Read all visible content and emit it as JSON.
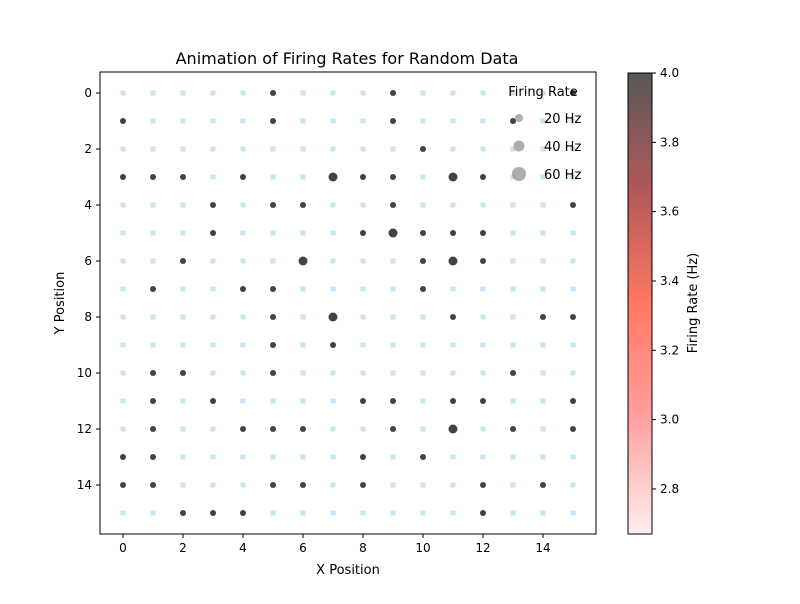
{
  "chart_data": {
    "type": "scatter",
    "title": "Animation of Firing Rates for Random Data",
    "xlabel": "X Position",
    "ylabel": "Y Position",
    "xlim": [
      -0.75,
      15.75
    ],
    "ylim": [
      15.75,
      -0.75
    ],
    "y_inverted": true,
    "xticks": [
      0,
      2,
      4,
      6,
      8,
      10,
      12,
      14
    ],
    "yticks": [
      0,
      2,
      4,
      6,
      8,
      10,
      12,
      14
    ],
    "grid": false,
    "legend": {
      "title": "Firing Rate",
      "placement": "top-right",
      "entries": [
        {
          "label": "20 Hz",
          "rate": 20
        },
        {
          "label": "40 Hz",
          "rate": 40
        },
        {
          "label": "60 Hz",
          "rate": 60
        }
      ]
    },
    "colorbar": {
      "label": "Firing Rate (Hz)",
      "range": [
        2.67,
        4.0
      ],
      "ticks": [
        "2.8",
        "3.0",
        "3.2",
        "3.4",
        "3.6",
        "3.8",
        "4.0"
      ],
      "colors": [
        "#ffeeee",
        "#ffa0a0",
        "#ff7860",
        "#b0585a",
        "#585858"
      ]
    },
    "grid_cells": {
      "x": [
        0,
        15
      ],
      "y": [
        0,
        15
      ],
      "color": "#c6e4ee"
    },
    "point_color": "#3a3a3a",
    "series": [
      {
        "points": [
          [
            5,
            0,
            1
          ],
          [
            9,
            0,
            1
          ],
          [
            15,
            0,
            1
          ],
          [
            0,
            1,
            1
          ],
          [
            5,
            1,
            1
          ],
          [
            9,
            1,
            1
          ],
          [
            13,
            1,
            1
          ],
          [
            10,
            2,
            1
          ],
          [
            0,
            3,
            1
          ],
          [
            1,
            3,
            1
          ],
          [
            2,
            3,
            1
          ],
          [
            4,
            3,
            1
          ],
          [
            7,
            3,
            2
          ],
          [
            8,
            3,
            1
          ],
          [
            9,
            3,
            1
          ],
          [
            11,
            3,
            2
          ],
          [
            12,
            3,
            1
          ],
          [
            3,
            4,
            1
          ],
          [
            5,
            4,
            1
          ],
          [
            6,
            4,
            1
          ],
          [
            9,
            4,
            1
          ],
          [
            15,
            4,
            1
          ],
          [
            3,
            5,
            1
          ],
          [
            8,
            5,
            1
          ],
          [
            9,
            5,
            2
          ],
          [
            10,
            5,
            1
          ],
          [
            11,
            5,
            1
          ],
          [
            12,
            5,
            1
          ],
          [
            2,
            6,
            1
          ],
          [
            6,
            6,
            2
          ],
          [
            10,
            6,
            1
          ],
          [
            11,
            6,
            2
          ],
          [
            12,
            6,
            1
          ],
          [
            1,
            7,
            1
          ],
          [
            4,
            7,
            1
          ],
          [
            5,
            7,
            1
          ],
          [
            10,
            7,
            1
          ],
          [
            5,
            8,
            1
          ],
          [
            7,
            8,
            2
          ],
          [
            11,
            8,
            1
          ],
          [
            14,
            8,
            1
          ],
          [
            15,
            8,
            1
          ],
          [
            5,
            9,
            1
          ],
          [
            7,
            9,
            1
          ],
          [
            1,
            10,
            1
          ],
          [
            2,
            10,
            1
          ],
          [
            5,
            10,
            1
          ],
          [
            13,
            10,
            1
          ],
          [
            1,
            11,
            1
          ],
          [
            3,
            11,
            1
          ],
          [
            8,
            11,
            1
          ],
          [
            9,
            11,
            1
          ],
          [
            11,
            11,
            1
          ],
          [
            12,
            11,
            1
          ],
          [
            15,
            11,
            1
          ],
          [
            1,
            12,
            1
          ],
          [
            4,
            12,
            1
          ],
          [
            5,
            12,
            1
          ],
          [
            6,
            12,
            1
          ],
          [
            9,
            12,
            1
          ],
          [
            11,
            12,
            2
          ],
          [
            13,
            12,
            1
          ],
          [
            15,
            12,
            1
          ],
          [
            0,
            13,
            1
          ],
          [
            1,
            13,
            1
          ],
          [
            8,
            13,
            1
          ],
          [
            10,
            13,
            1
          ],
          [
            0,
            14,
            1
          ],
          [
            1,
            14,
            1
          ],
          [
            5,
            14,
            1
          ],
          [
            6,
            14,
            1
          ],
          [
            8,
            14,
            1
          ],
          [
            12,
            14,
            1
          ],
          [
            14,
            14,
            1
          ],
          [
            2,
            15,
            1
          ],
          [
            3,
            15,
            1
          ],
          [
            4,
            15,
            1
          ],
          [
            12,
            15,
            1
          ]
        ]
      }
    ]
  }
}
